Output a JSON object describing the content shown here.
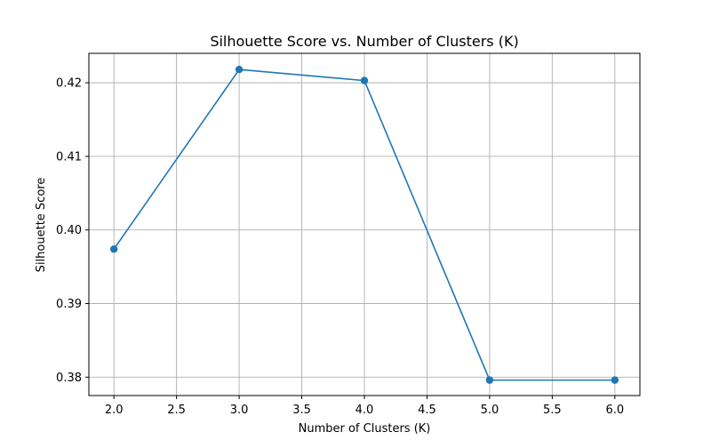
{
  "chart_data": {
    "type": "line",
    "title": "Silhouette Score vs. Number of Clusters (K)",
    "xlabel": "Number of Clusters (K)",
    "ylabel": "Silhouette Score",
    "x": [
      2,
      3,
      4,
      5,
      6
    ],
    "series": [
      {
        "values": [
          0.3974,
          0.4218,
          0.4203,
          0.3796,
          0.3796
        ],
        "color": "#1f77b4",
        "marker": "circle"
      }
    ],
    "xlim": [
      1.8,
      6.2
    ],
    "ylim": [
      0.3775,
      0.424
    ],
    "x_ticks": [
      2.0,
      2.5,
      3.0,
      3.5,
      4.0,
      4.5,
      5.0,
      5.5,
      6.0
    ],
    "x_tick_labels": [
      "2.0",
      "2.5",
      "3.0",
      "3.5",
      "4.0",
      "4.5",
      "5.0",
      "5.5",
      "6.0"
    ],
    "y_ticks": [
      0.38,
      0.39,
      0.4,
      0.41,
      0.42
    ],
    "y_tick_labels": [
      "0.38",
      "0.39",
      "0.40",
      "0.41",
      "0.42"
    ],
    "grid": true,
    "grid_color": "#b0b0b0",
    "legend": false
  }
}
